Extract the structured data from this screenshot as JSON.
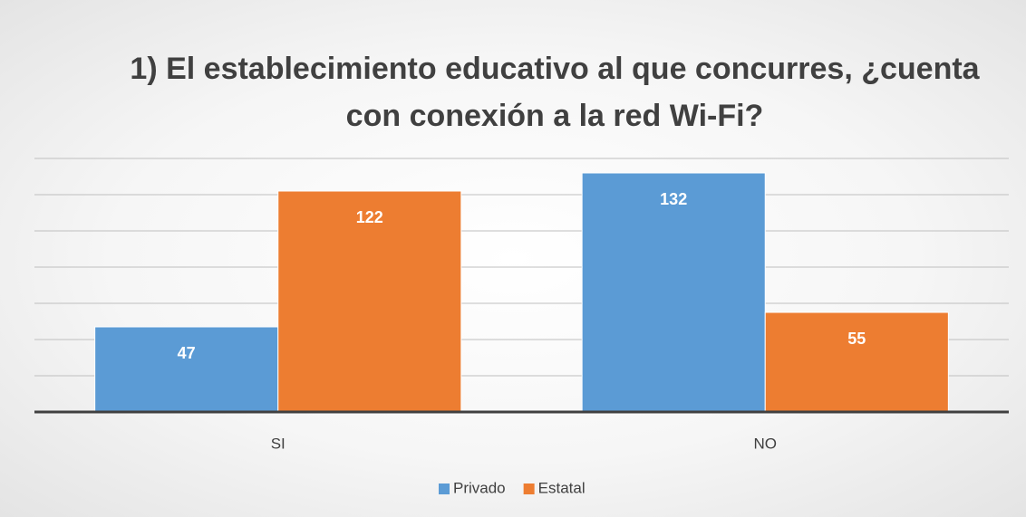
{
  "chart_data": {
    "type": "bar",
    "title": "1) El establecimiento educativo al que concurres, ¿cuenta con conexión a la red Wi-Fi?",
    "categories": [
      "SI",
      "NO"
    ],
    "series": [
      {
        "name": "Privado",
        "color": "#5b9bd5",
        "values": [
          47,
          132
        ]
      },
      {
        "name": "Estatal",
        "color": "#ed7d31",
        "values": [
          122,
          55
        ]
      }
    ],
    "ylim": [
      0,
      140
    ],
    "yticks": [
      0,
      20,
      40,
      60,
      80,
      100,
      120,
      140
    ],
    "grid": true,
    "legend": "bottom"
  }
}
